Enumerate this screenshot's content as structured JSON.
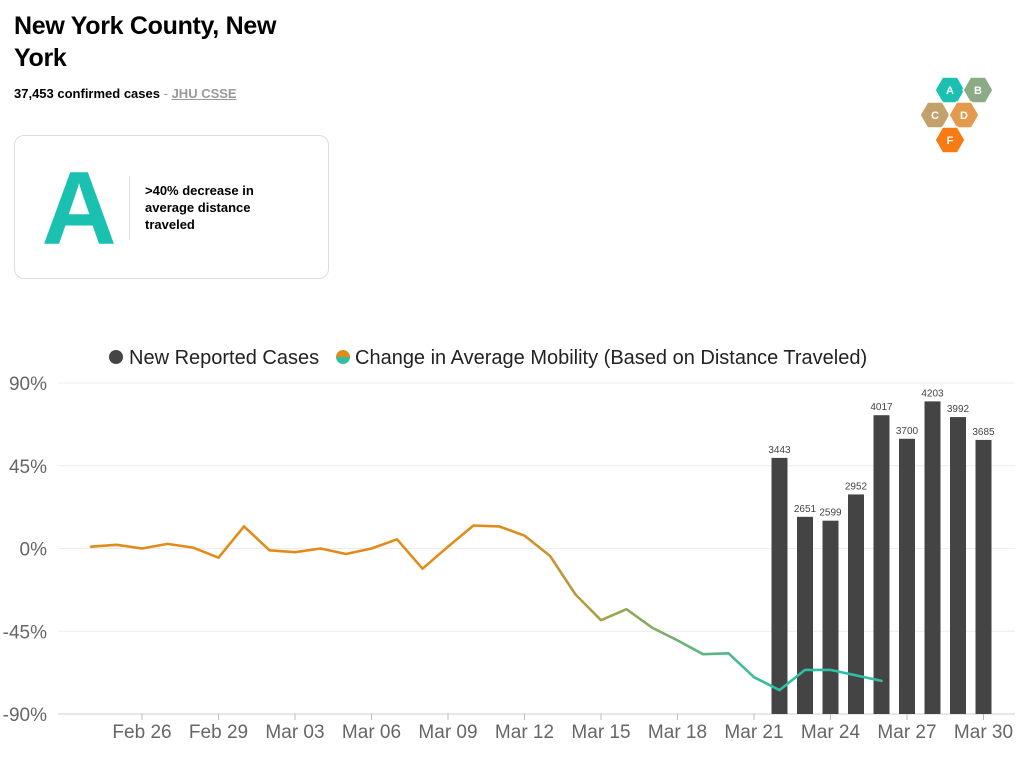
{
  "header": {
    "title": "New York County, New York",
    "cases_summary": "37,453 confirmed cases",
    "separator": "-",
    "source_link": "JHU CSSE"
  },
  "grade": {
    "letter": "A",
    "description": ">40% decrease in average distance traveled",
    "color": "#1bc1b0"
  },
  "logo": {
    "icon": "grade-hexagons-icon",
    "hexes": [
      {
        "label": "A",
        "color": "#1bc1b0"
      },
      {
        "label": "B",
        "color": "#8aab86"
      },
      {
        "label": "C",
        "color": "#c2a16c"
      },
      {
        "label": "D",
        "color": "#e39a4e"
      },
      {
        "label": "F",
        "color": "#f77b15"
      }
    ]
  },
  "chart_data": {
    "type": "bar+line",
    "legend": [
      {
        "name": "New Reported Cases",
        "color": "#444444"
      },
      {
        "name": "Change in Average Mobility (Based on Distance Traveled)",
        "colors": [
          "#e38b19",
          "#2fbfa5"
        ]
      }
    ],
    "legend_position": "top",
    "y_ticks": [
      "90%",
      "45%",
      "0%",
      "-45%",
      "-90%"
    ],
    "ylim_percent": [
      -90,
      90
    ],
    "x_ticks": [
      "Feb 26",
      "Feb 29",
      "Mar 03",
      "Mar 06",
      "Mar 09",
      "Mar 12",
      "Mar 15",
      "Mar 18",
      "Mar 21",
      "Mar 24",
      "Mar 27",
      "Mar 30"
    ],
    "grid": true,
    "bars": {
      "name": "New Reported Cases",
      "dates": [
        "Mar 22",
        "Mar 23",
        "Mar 24",
        "Mar 25",
        "Mar 26",
        "Mar 27",
        "Mar 28",
        "Mar 29",
        "Mar 30"
      ],
      "values": [
        3443,
        2651,
        2599,
        2952,
        4017,
        3700,
        4203,
        3992,
        3685
      ],
      "color": "#444444"
    },
    "mobility": {
      "name": "Change in Average Mobility (Based on Distance Traveled)",
      "dates": [
        "Feb 24",
        "Feb 25",
        "Feb 26",
        "Feb 27",
        "Feb 28",
        "Feb 29",
        "Mar 01",
        "Mar 02",
        "Mar 03",
        "Mar 04",
        "Mar 05",
        "Mar 06",
        "Mar 07",
        "Mar 08",
        "Mar 09",
        "Mar 10",
        "Mar 11",
        "Mar 12",
        "Mar 13",
        "Mar 14",
        "Mar 15",
        "Mar 16",
        "Mar 17",
        "Mar 18",
        "Mar 19",
        "Mar 20",
        "Mar 21",
        "Mar 22",
        "Mar 23",
        "Mar 24",
        "Mar 25",
        "Mar 26"
      ],
      "values_percent": [
        1,
        2,
        0,
        2.5,
        0.5,
        -5,
        12,
        -1,
        -2,
        0,
        -3,
        0,
        5,
        -11,
        1,
        12.5,
        12,
        7,
        -4,
        -25,
        -39,
        -33,
        -43,
        -50,
        -57.5,
        -57,
        -70,
        -77,
        -66,
        -66,
        -69,
        -72
      ],
      "colors": [
        "#e38b19",
        "#8aab5e",
        "#2fbfa5"
      ]
    }
  }
}
